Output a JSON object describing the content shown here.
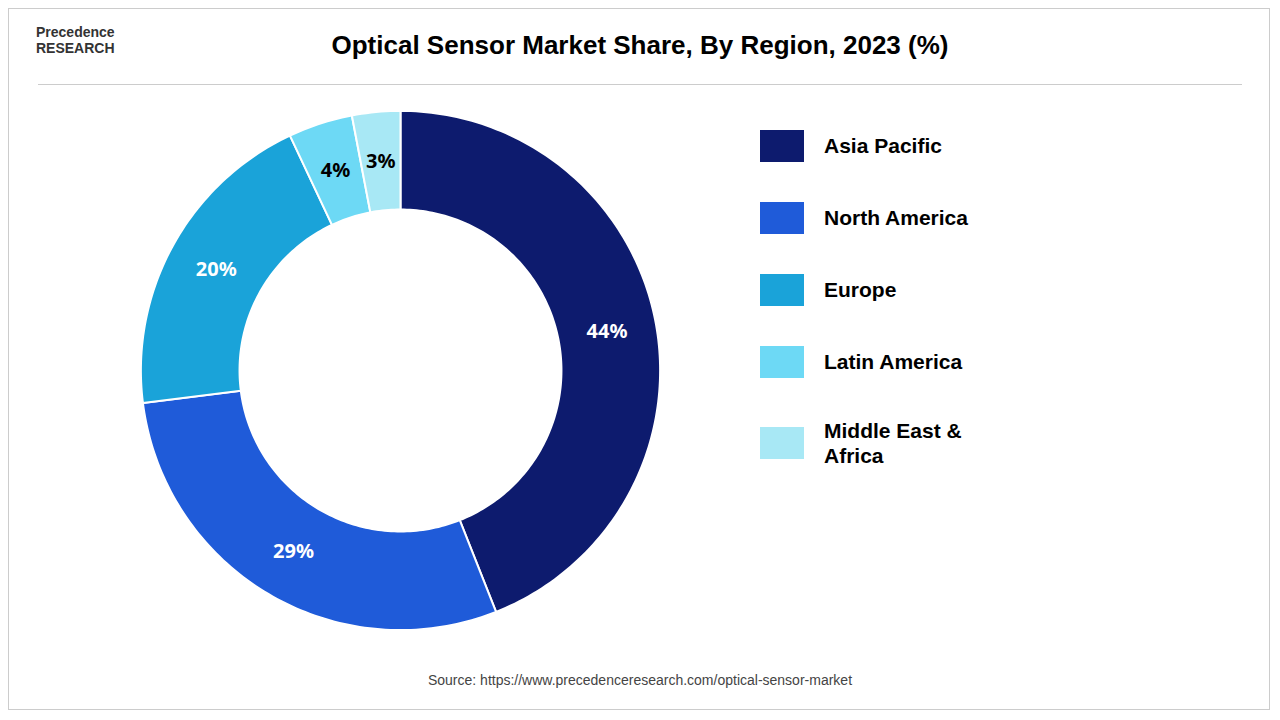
{
  "chart_data": {
    "type": "pie",
    "title": "Optical Sensor Market Share, By Region, 2023 (%)",
    "categories": [
      "Asia Pacific",
      "North America",
      "Europe",
      "Latin America",
      "Middle East &\nAfrica"
    ],
    "values": [
      44,
      29,
      20,
      4,
      3
    ],
    "value_labels": [
      "44%",
      "29%",
      "20%",
      "4%",
      "3%"
    ],
    "colors": [
      "#0d1b6e",
      "#1f5bd9",
      "#1aa3d9",
      "#6dd9f5",
      "#a8e8f5"
    ],
    "data_labels": true,
    "legend": "right",
    "annotations": [
      "Source: https://www.precedenceresearch.com/optical-sensor-market",
      "Precedence\nRESEARCH"
    ]
  }
}
